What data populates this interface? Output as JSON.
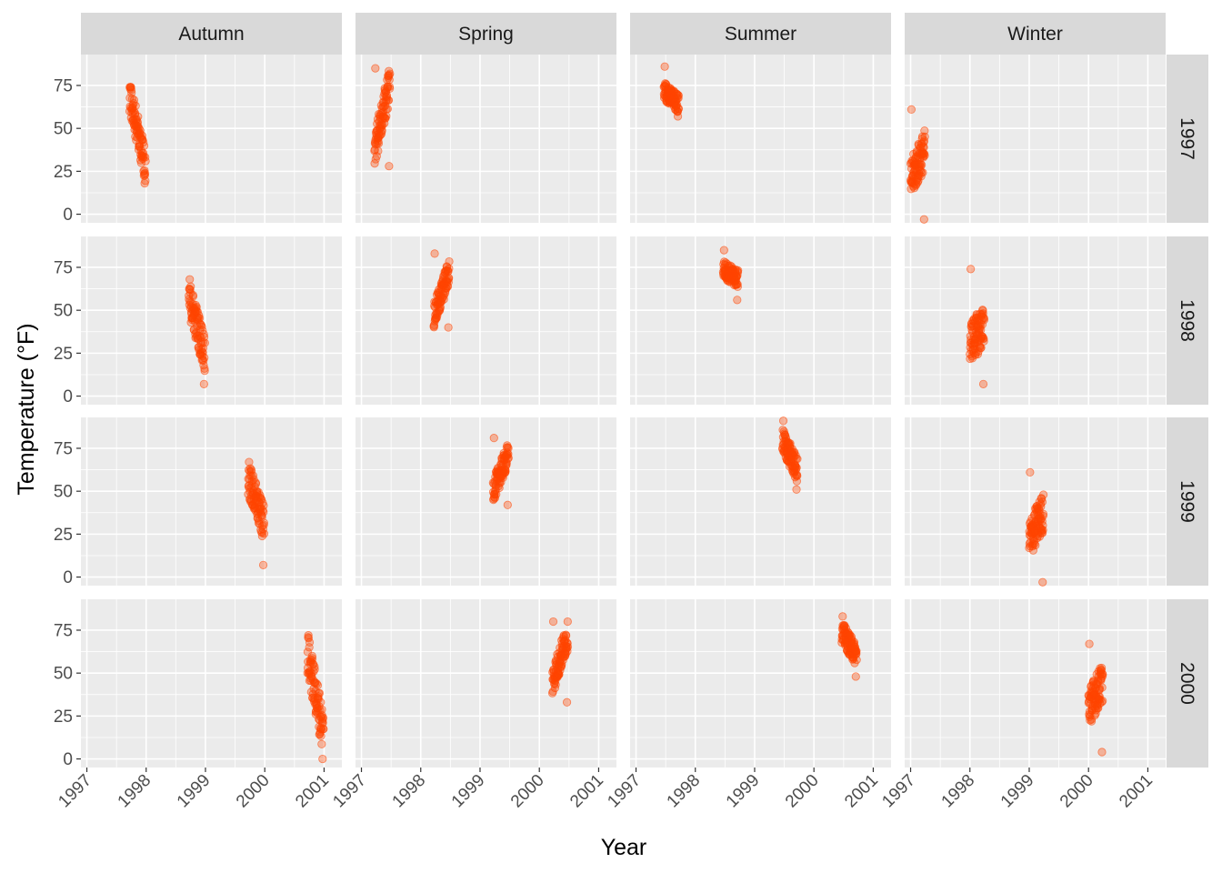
{
  "chart_data": {
    "type": "scatter",
    "title": "",
    "xlabel": "Year",
    "ylabel": "Temperature (°F)",
    "facet_columns": [
      "Autumn",
      "Spring",
      "Summer",
      "Winter"
    ],
    "facet_rows": [
      "1997",
      "1998",
      "1999",
      "2000"
    ],
    "xlim": [
      1996.9,
      2001.3
    ],
    "ylim": [
      -5,
      93
    ],
    "x_ticks": [
      1997,
      1998,
      1999,
      2000,
      2001
    ],
    "y_ticks": [
      0,
      25,
      50,
      75
    ],
    "grid": true,
    "legend": "none",
    "point_color": "#FF4500",
    "point_alpha": 0.35,
    "panels": [
      {
        "season": "Autumn",
        "year": "1997",
        "x_range": [
          1997.72,
          1997.99
        ],
        "temp_start": 70,
        "temp_end": 28,
        "temp_min": 18,
        "temp_max": 74
      },
      {
        "season": "Spring",
        "year": "1997",
        "x_range": [
          1997.22,
          1997.48
        ],
        "temp_start": 38,
        "temp_end": 76,
        "temp_min": 28,
        "temp_max": 85
      },
      {
        "season": "Summer",
        "year": "1997",
        "x_range": [
          1997.47,
          1997.72
        ],
        "temp_start": 72,
        "temp_end": 64,
        "temp_min": 57,
        "temp_max": 86
      },
      {
        "season": "Winter",
        "year": "1997",
        "x_range": [
          1997.0,
          1997.24
        ],
        "temp_start": 20,
        "temp_end": 38,
        "temp_min": -3,
        "temp_max": 61
      },
      {
        "season": "Autumn",
        "year": "1998",
        "x_range": [
          1998.72,
          1998.99
        ],
        "temp_start": 58,
        "temp_end": 25,
        "temp_min": 7,
        "temp_max": 68
      },
      {
        "season": "Spring",
        "year": "1998",
        "x_range": [
          1998.22,
          1998.48
        ],
        "temp_start": 46,
        "temp_end": 73,
        "temp_min": 40,
        "temp_max": 83
      },
      {
        "season": "Summer",
        "year": "1998",
        "x_range": [
          1998.47,
          1998.72
        ],
        "temp_start": 74,
        "temp_end": 68,
        "temp_min": 56,
        "temp_max": 85
      },
      {
        "season": "Winter",
        "year": "1998",
        "x_range": [
          1998.0,
          1998.24
        ],
        "temp_start": 32,
        "temp_end": 40,
        "temp_min": 7,
        "temp_max": 74
      },
      {
        "season": "Autumn",
        "year": "1999",
        "x_range": [
          1999.72,
          1999.99
        ],
        "temp_start": 58,
        "temp_end": 30,
        "temp_min": 7,
        "temp_max": 67
      },
      {
        "season": "Spring",
        "year": "1999",
        "x_range": [
          1999.22,
          1999.48
        ],
        "temp_start": 50,
        "temp_end": 72,
        "temp_min": 42,
        "temp_max": 81
      },
      {
        "season": "Summer",
        "year": "1999",
        "x_range": [
          1999.47,
          1999.72
        ],
        "temp_start": 80,
        "temp_end": 62,
        "temp_min": 51,
        "temp_max": 91
      },
      {
        "season": "Winter",
        "year": "1999",
        "x_range": [
          1999.0,
          1999.24
        ],
        "temp_start": 22,
        "temp_end": 38,
        "temp_min": -3,
        "temp_max": 61
      },
      {
        "season": "Autumn",
        "year": "2000",
        "x_range": [
          2000.72,
          2000.99
        ],
        "temp_start": 62,
        "temp_end": 15,
        "temp_min": 0,
        "temp_max": 72
      },
      {
        "season": "Spring",
        "year": "2000",
        "x_range": [
          2000.22,
          2000.48
        ],
        "temp_start": 45,
        "temp_end": 72,
        "temp_min": 33,
        "temp_max": 80
      },
      {
        "season": "Summer",
        "year": "2000",
        "x_range": [
          2000.47,
          2000.72
        ],
        "temp_start": 74,
        "temp_end": 60,
        "temp_min": 48,
        "temp_max": 83
      },
      {
        "season": "Winter",
        "year": "2000",
        "x_range": [
          2000.0,
          2000.24
        ],
        "temp_start": 30,
        "temp_end": 45,
        "temp_min": 4,
        "temp_max": 67
      }
    ]
  }
}
